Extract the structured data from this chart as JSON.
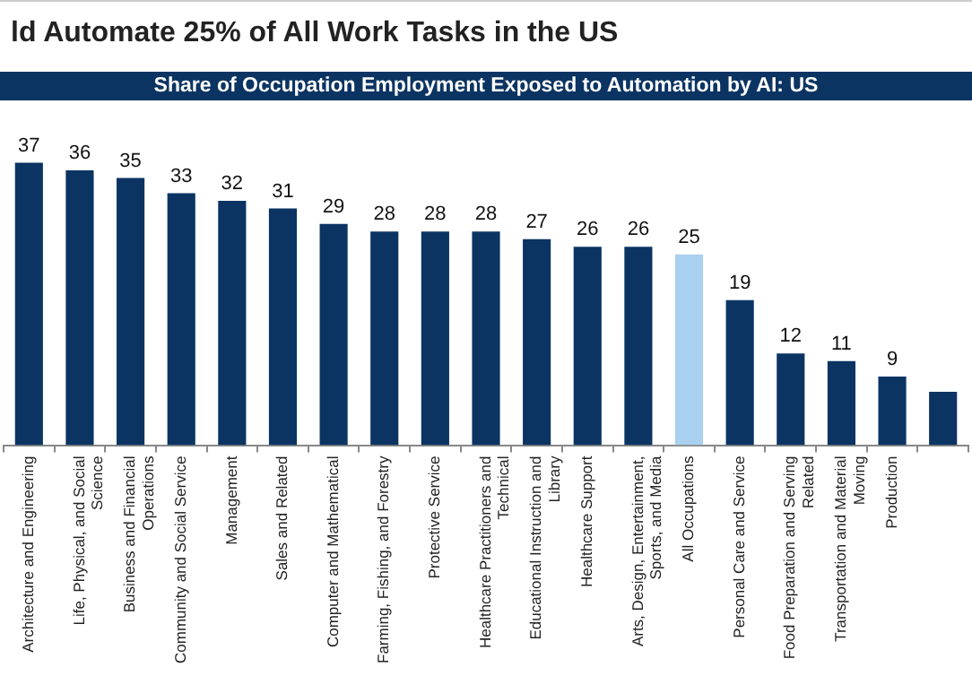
{
  "chart_data": {
    "type": "bar",
    "title": "ld Automate 25% of All Work Tasks in the US",
    "subtitle": "Share of Occupation Employment Exposed to Automation by AI: US",
    "categories": [
      "Architecture and Engineering",
      "Life, Physical, and Social Science",
      "Business and Financial Operations",
      "Community and Social Service",
      "Management",
      "Sales and Related",
      "Computer and Mathematical",
      "Farming, Fishing, and Forestry",
      "Protective Service",
      "Healthcare Practitioners and Technical",
      "Educational Instruction and Library",
      "Healthcare Support",
      "Arts, Design, Entertainment, Sports, and Media",
      "All Occupations",
      "Personal Care and Service",
      "Food Preparation and Serving Related",
      "Transportation and Material Moving",
      "Production",
      null
    ],
    "values": [
      37,
      36,
      35,
      33,
      32,
      31,
      29,
      28,
      28,
      28,
      27,
      26,
      26,
      25,
      19,
      12,
      11,
      9,
      7
    ],
    "value_labels": [
      "37",
      "36",
      "35",
      "33",
      "32",
      "31",
      "29",
      "28",
      "28",
      "28",
      "27",
      "26",
      "26",
      "25",
      "19",
      "12",
      "11",
      "9",
      null
    ],
    "colors": [
      "#0b3463",
      "#0b3463",
      "#0b3463",
      "#0b3463",
      "#0b3463",
      "#0b3463",
      "#0b3463",
      "#0b3463",
      "#0b3463",
      "#0b3463",
      "#0b3463",
      "#0b3463",
      "#0b3463",
      "#a9d0ee",
      "#0b3463",
      "#0b3463",
      "#0b3463",
      "#0b3463",
      "#0b3463"
    ],
    "grid": false,
    "legend": false
  }
}
